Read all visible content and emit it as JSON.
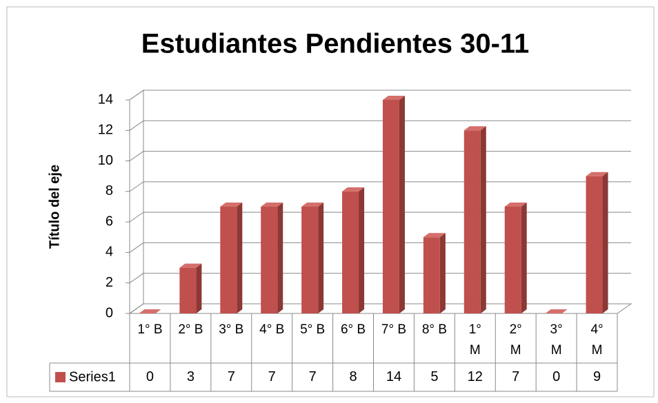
{
  "chart_data": {
    "type": "bar3d",
    "title": "Estudiantes Pendientes 30-11",
    "y_label": "Título del eje",
    "categories": [
      "1° B",
      "2° B",
      "3° B",
      "4° B",
      "5° B",
      "6° B",
      "7° B",
      "8° B",
      "1° M",
      "2° M",
      "3° M",
      "4° M"
    ],
    "series": [
      {
        "name": "Series1",
        "color": "#c0504d",
        "values": [
          0,
          3,
          7,
          7,
          7,
          8,
          14,
          5,
          12,
          7,
          0,
          9
        ]
      }
    ],
    "ylim": [
      0,
      14
    ],
    "yticks": [
      0,
      2,
      4,
      6,
      8,
      10,
      12,
      14
    ],
    "grid": true,
    "data_table": true
  }
}
